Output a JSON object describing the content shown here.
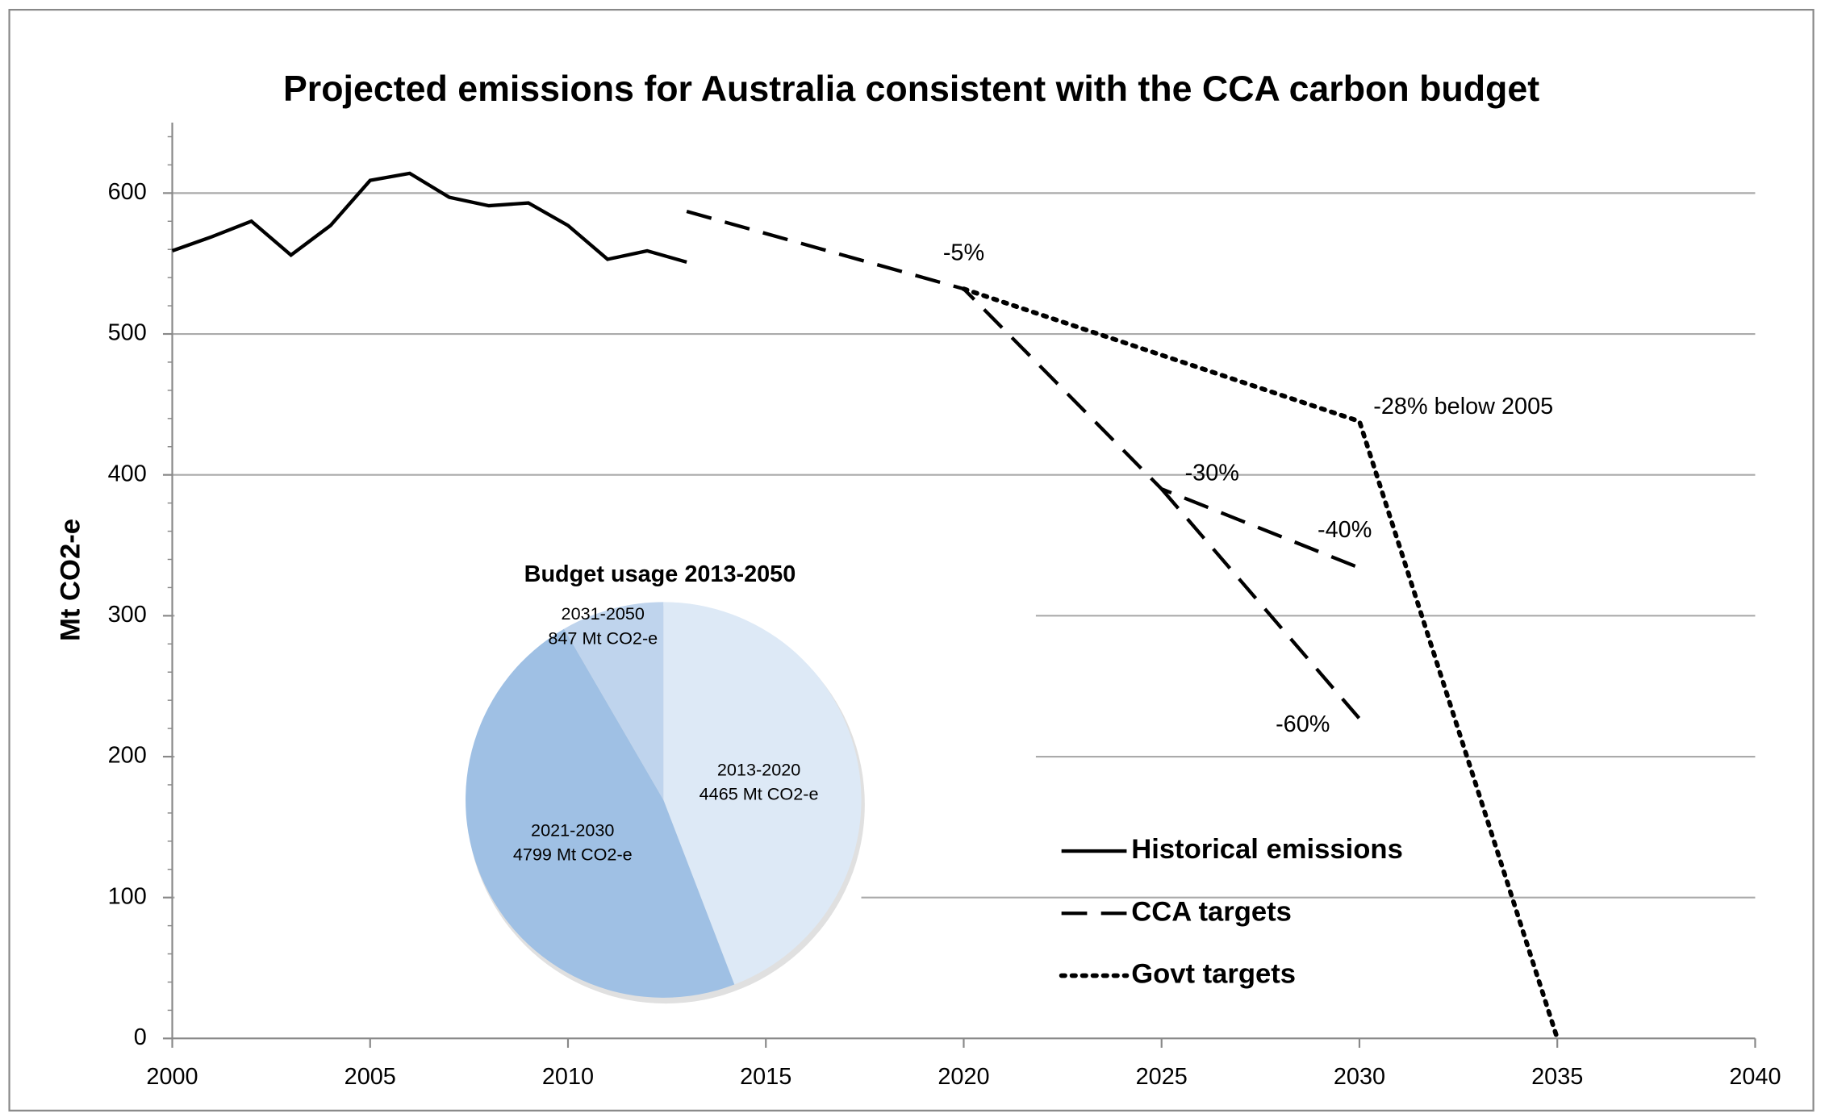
{
  "chart_data": {
    "type": "line",
    "title": "Projected emissions for Australia consistent with the CCA carbon budget",
    "ylabel": "Mt CO2-e",
    "xlim": [
      2000,
      2040
    ],
    "xticks": [
      2000,
      2005,
      2010,
      2015,
      2020,
      2025,
      2030,
      2035,
      2040
    ],
    "ylim": [
      0,
      650
    ],
    "yticks": [
      0,
      100,
      200,
      300,
      400,
      500,
      600
    ],
    "grid": true,
    "series": [
      {
        "name": "Historical emissions",
        "color": "#000000",
        "dash": "solid",
        "x": [
          2000,
          2001,
          2002,
          2003,
          2004,
          2005,
          2006,
          2007,
          2008,
          2009,
          2010,
          2011,
          2012,
          2013
        ],
        "values": [
          559,
          569,
          580,
          556,
          577,
          609,
          614,
          597,
          591,
          593,
          577,
          553,
          559,
          551
        ]
      },
      {
        "name": "CCA targets",
        "color": "#000000",
        "dash": "dashed",
        "x": [
          2013,
          2020,
          2025,
          2030,
          null,
          2025,
          2030
        ],
        "values": [
          587,
          532,
          390,
          334,
          null,
          390,
          227
        ]
      },
      {
        "name": "Govt targets",
        "color": "#000000",
        "dash": "dotted",
        "x": [
          2020,
          2030,
          2035
        ],
        "values": [
          532,
          438,
          0
        ]
      }
    ],
    "annotations": [
      "-5%",
      "-28% below 2005",
      "-30%",
      "-40%",
      "-60%"
    ],
    "inset": {
      "type": "pie",
      "title": "Budget usage 2013-2050",
      "categories": [
        "2013-2020",
        "2021-2030",
        "2031-2050"
      ],
      "values": [
        4465,
        4799,
        847
      ],
      "value_labels": [
        "4465 Mt CO2-e",
        "4799 Mt CO2-e",
        "847 Mt CO2-e"
      ],
      "colors": [
        "#dde9f6",
        "#9fc0e4",
        "#bfd4ed"
      ]
    }
  }
}
